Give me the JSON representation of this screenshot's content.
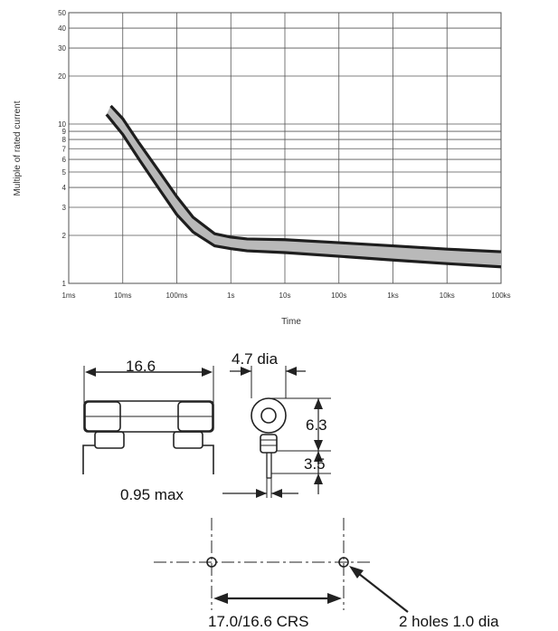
{
  "chart_data": {
    "type": "area",
    "title": "",
    "xlabel": "Time",
    "ylabel": "Multiple of rated current",
    "x_scale": "log",
    "y_scale": "log",
    "xlim": [
      "1ms",
      "100ks"
    ],
    "ylim": [
      1,
      50
    ],
    "x_ticks": [
      "1ms",
      "10ms",
      "100ms",
      "1s",
      "10s",
      "100s",
      "1ks",
      "10ks",
      "100ks"
    ],
    "y_ticks": [
      "1",
      "2",
      "3",
      "4",
      "5",
      "6",
      "7",
      "8",
      "9",
      "10",
      "20",
      "30",
      "40",
      "50"
    ],
    "grid": true,
    "legend": "none",
    "series": [
      {
        "x": [
          "6ms",
          "10ms",
          "20ms",
          "50ms",
          "100ms",
          "200ms",
          "500ms",
          "1s",
          "2s",
          "10s",
          "100s",
          "1ks",
          "10ks",
          "100ks"
        ],
        "values": [
          13,
          10.8,
          7.6,
          4.9,
          3.5,
          2.6,
          2.05,
          1.95,
          1.9,
          1.88,
          1.8,
          1.72,
          1.64,
          1.58
        ]
      },
      {
        "x": [
          "5ms",
          "10ms",
          "20ms",
          "50ms",
          "100ms",
          "200ms",
          "500ms",
          "1s",
          "2s",
          "10s",
          "100s",
          "1ks",
          "10ks",
          "100ks"
        ],
        "values": [
          11.5,
          8.6,
          6.0,
          3.8,
          2.7,
          2.1,
          1.72,
          1.65,
          1.6,
          1.56,
          1.48,
          1.4,
          1.33,
          1.27
        ]
      }
    ],
    "band_color": "#b9b9b9",
    "line_color": "#1e1e1e"
  },
  "drawing": {
    "length_label": "16.6",
    "diameter_label": "4.7 dia",
    "height_label": "6.3",
    "lead_label": "3.5",
    "lead_width_label": "0.95 max",
    "spacing_label": "17.0/16.6 CRS",
    "holes_label": "2 holes 1.0 dia"
  }
}
